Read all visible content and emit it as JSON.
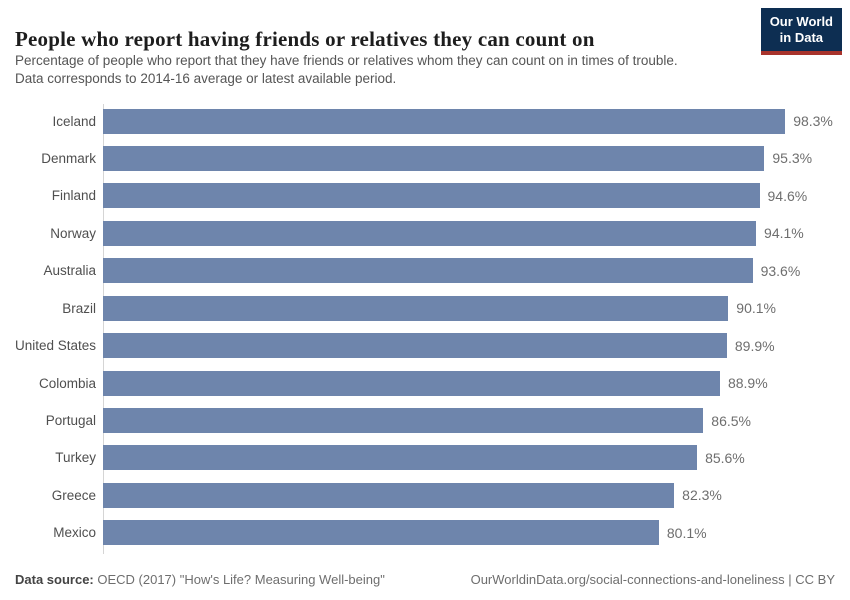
{
  "header": {
    "title": "People who report having friends or relatives they can count on",
    "subtitle_lines": [
      "Percentage of people who report that they have friends or relatives whom they can count on in times of trouble.",
      "Data corresponds to 2014-16 average or latest available period."
    ],
    "logo": {
      "line1": "Our World",
      "line2": "in Data"
    }
  },
  "chart_data": {
    "type": "bar",
    "orientation": "horizontal",
    "title": "People who report having friends or relatives they can count on",
    "categories": [
      "Iceland",
      "Denmark",
      "Finland",
      "Norway",
      "Australia",
      "Brazil",
      "United States",
      "Colombia",
      "Portugal",
      "Turkey",
      "Greece",
      "Mexico"
    ],
    "values": [
      98.3,
      95.3,
      94.6,
      94.1,
      93.6,
      90.1,
      89.9,
      88.9,
      86.5,
      85.6,
      82.3,
      80.1
    ],
    "value_labels": [
      "98.3%",
      "95.3%",
      "94.6%",
      "94.1%",
      "93.6%",
      "90.1%",
      "89.9%",
      "88.9%",
      "86.5%",
      "85.6%",
      "82.3%",
      "80.1%"
    ],
    "xlabel": "",
    "ylabel": "",
    "xlim": [
      0,
      100
    ],
    "grid": false,
    "legend": false,
    "unit": "%"
  },
  "footer": {
    "source_label": "Data source:",
    "source_text": " OECD (2017) \"How's Life? Measuring Well-being\"",
    "link_text": "OurWorldinData.org/social-connections-and-loneliness | CC BY"
  },
  "colors": {
    "bar": "#6e85ac",
    "axis": "#d5d5d5",
    "logo-bg": "#0d2e52",
    "logo-stripe": "#a8332c"
  }
}
